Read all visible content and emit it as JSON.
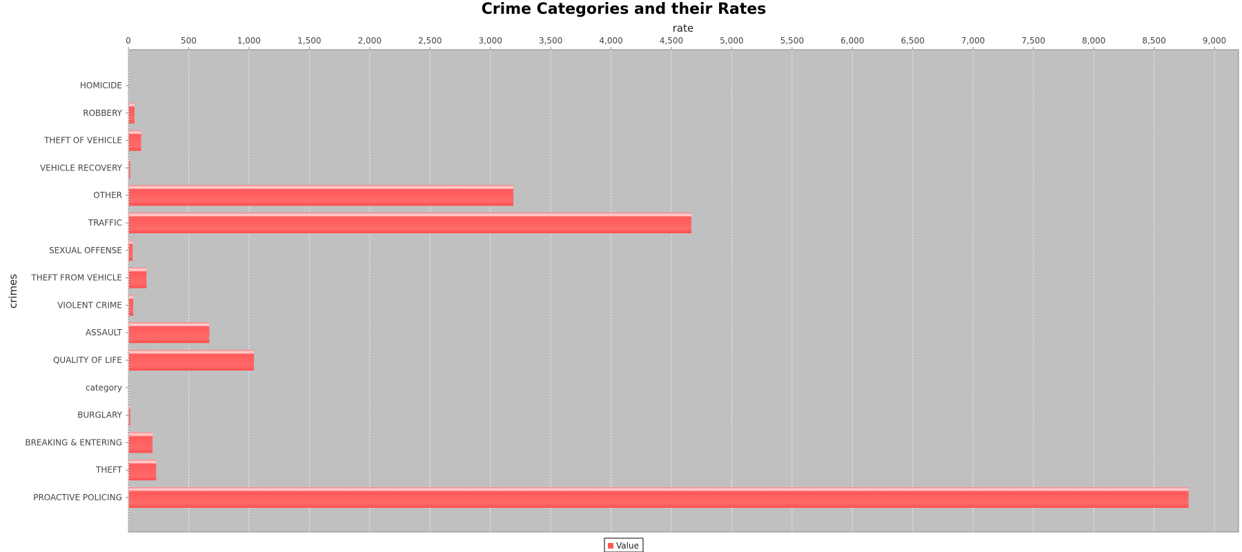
{
  "chart_data": {
    "type": "bar",
    "orientation": "horizontal",
    "title": "Crime Categories and their Rates",
    "xlabel": "rate",
    "ylabel": "crimes",
    "xlim": [
      0,
      9200
    ],
    "x_ticks": [
      0,
      500,
      1000,
      1500,
      2000,
      2500,
      3000,
      3500,
      4000,
      4500,
      5000,
      5500,
      6000,
      6500,
      7000,
      7500,
      8000,
      8500,
      9000
    ],
    "x_tick_labels": [
      "0",
      "500",
      "1,000",
      "1,500",
      "2,000",
      "2,500",
      "3,000",
      "3,500",
      "4,000",
      "4,500",
      "5,000",
      "5,500",
      "6,000",
      "6,500",
      "7,000",
      "7,500",
      "8,000",
      "8,500",
      "9,000"
    ],
    "x_axis_position": "top",
    "grid": true,
    "categories": [
      "HOMICIDE",
      "ROBBERY",
      "THEFT OF VEHICLE",
      "VEHICLE RECOVERY",
      "OTHER",
      "TRAFFIC",
      "SEXUAL OFFENSE",
      "THEFT FROM VEHICLE",
      "VIOLENT CRIME",
      "ASSAULT",
      "QUALITY OF LIFE",
      "category",
      "BURGLARY",
      "BREAKING & ENTERING",
      "THEFT",
      "PROACTIVE POLICING"
    ],
    "series": [
      {
        "name": "Value",
        "color": "#ff5555",
        "values": [
          0,
          45,
          100,
          10,
          3185,
          4660,
          30,
          145,
          35,
          665,
          1035,
          0,
          10,
          195,
          225,
          8780
        ]
      }
    ],
    "legend_position": "bottom-center",
    "plot_background": "#c0c0c0"
  }
}
